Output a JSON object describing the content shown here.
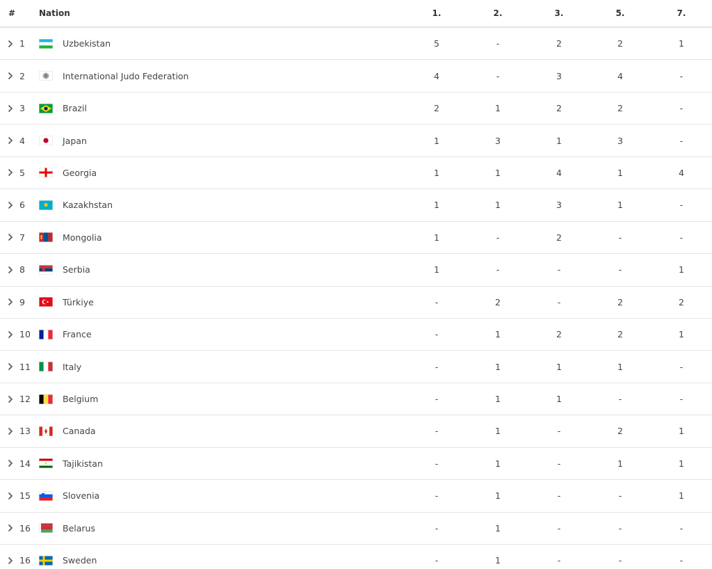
{
  "table": {
    "header": [
      "#",
      "Nation",
      "1.",
      "2.",
      "3.",
      "5.",
      "7."
    ],
    "rows": [
      [
        1,
        "Uzbekistan",
        5,
        "-",
        2,
        2,
        1
      ],
      [
        2,
        "International Judo Federation",
        4,
        "-",
        3,
        4,
        "-"
      ],
      [
        3,
        "Brazil",
        2,
        1,
        2,
        2,
        "-"
      ],
      [
        4,
        "Japan",
        1,
        3,
        1,
        3,
        "-"
      ],
      [
        5,
        "Georgia",
        1,
        1,
        4,
        1,
        4
      ],
      [
        6,
        "Kazakhstan",
        1,
        1,
        3,
        1,
        "-"
      ],
      [
        7,
        "Mongolia",
        1,
        "-",
        2,
        "-",
        "-"
      ],
      [
        8,
        "Serbia",
        1,
        "-",
        "-",
        "-",
        1
      ],
      [
        9,
        "Türkiye",
        "-",
        2,
        "-",
        2,
        2
      ],
      [
        10,
        "France",
        "-",
        1,
        2,
        2,
        1
      ],
      [
        11,
        "Italy",
        "-",
        1,
        1,
        1,
        "-"
      ],
      [
        12,
        "Belgium",
        "-",
        1,
        1,
        "-",
        "-"
      ],
      [
        13,
        "Canada",
        "-",
        1,
        "-",
        2,
        1
      ],
      [
        14,
        "Tajikistan",
        "-",
        1,
        "-",
        1,
        1
      ],
      [
        15,
        "Slovenia",
        "-",
        1,
        "-",
        "-",
        1
      ],
      [
        16,
        "Belarus",
        "-",
        1,
        "-",
        "-",
        "-"
      ],
      [
        16,
        "Sweden",
        "-",
        1,
        "-",
        "-",
        "-"
      ]
    ]
  }
}
